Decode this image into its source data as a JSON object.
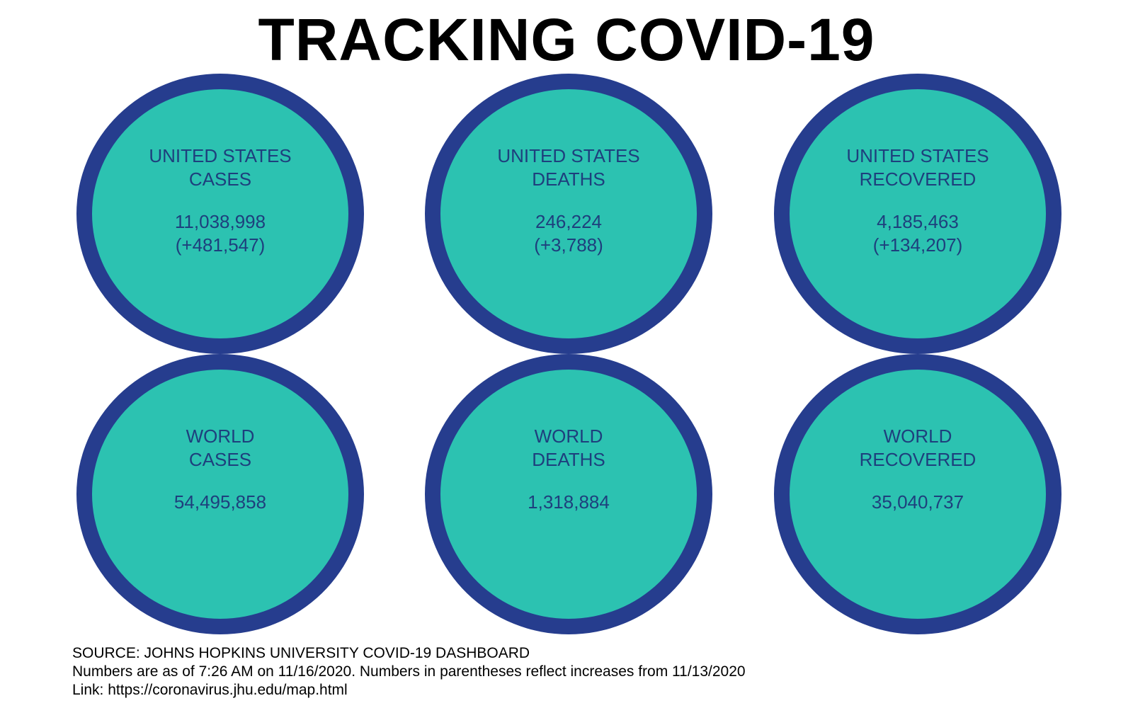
{
  "title": "TRACKING COVID-19",
  "colors": {
    "circle_fill": "#2cc2b1",
    "circle_border": "#263d8e",
    "circle_text": "#1e3f7d"
  },
  "stats": [
    {
      "label_line1": "UNITED STATES",
      "label_line2": "CASES",
      "value": "11,038,998",
      "change": "(+481,547)"
    },
    {
      "label_line1": "UNITED STATES",
      "label_line2": "DEATHS",
      "value": "246,224",
      "change": "(+3,788)"
    },
    {
      "label_line1": "UNITED STATES",
      "label_line2": "RECOVERED",
      "value": "4,185,463",
      "change": "(+134,207)"
    },
    {
      "label_line1": "WORLD",
      "label_line2": "CASES",
      "value": "54,495,858"
    },
    {
      "label_line1": "WORLD",
      "label_line2": "DEATHS",
      "value": "1,318,884"
    },
    {
      "label_line1": "WORLD",
      "label_line2": "RECOVERED",
      "value": "35,040,737"
    }
  ],
  "footer": {
    "source": "SOURCE: JOHNS HOPKINS UNIVERSITY COVID-19 DASHBOARD",
    "note": "Numbers are as of 7:26 AM on 11/16/2020. Numbers in parentheses reflect increases from 11/13/2020",
    "link": "Link: https://coronavirus.jhu.edu/map.html"
  }
}
